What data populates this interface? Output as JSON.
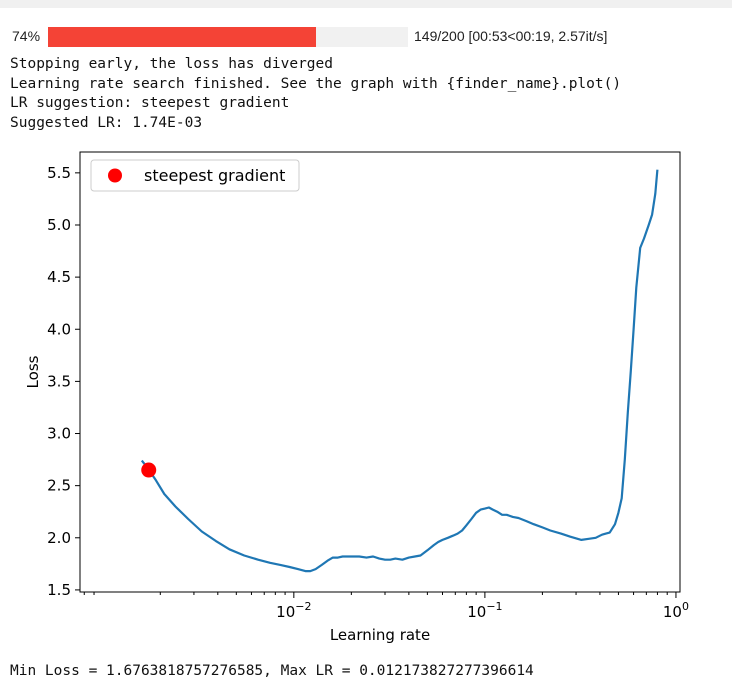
{
  "progress": {
    "percent_label": "74%",
    "fraction": 0.745,
    "fill_color": "#f44336",
    "track_color": "#f1f1f1",
    "status": "149/200 [00:53<00:19, 2.57it/s]"
  },
  "log_lines": [
    "Stopping early, the loss has diverged",
    "Learning rate search finished. See the graph with {finder_name}.plot()",
    "LR suggestion: steepest gradient",
    "Suggested LR: 1.74E-03"
  ],
  "footer": "Min Loss = 1.6763818757276585, Max LR = 0.012173827277396614",
  "chart_data": {
    "type": "line",
    "xlabel": "Learning rate",
    "ylabel": "Loss",
    "xscale": "log",
    "xlim": [
      0.00076,
      1.05
    ],
    "ylim": [
      1.48,
      5.7
    ],
    "x_ticks": [
      0.01,
      0.1,
      1
    ],
    "x_tick_labels": [
      {
        "base": "10",
        "exp": "−2"
      },
      {
        "base": "10",
        "exp": "−1"
      },
      {
        "base": "10",
        "exp": "0"
      }
    ],
    "y_ticks": [
      1.5,
      2.0,
      2.5,
      3.0,
      3.5,
      4.0,
      4.5,
      5.0,
      5.5
    ],
    "y_tick_labels": [
      "1.5",
      "2.0",
      "2.5",
      "3.0",
      "3.5",
      "4.0",
      "4.5",
      "5.0",
      "5.5"
    ],
    "line_color": "#1f77b4",
    "marker_color": "#ff0000",
    "grid": false,
    "legend": {
      "position": "top-left",
      "entries": [
        "steepest gradient"
      ]
    },
    "series": [
      {
        "x": [
          0.0016,
          0.0017,
          0.0019,
          0.0021,
          0.0024,
          0.0028,
          0.0033,
          0.0039,
          0.0046,
          0.0055,
          0.0065,
          0.0075,
          0.0085,
          0.0095,
          0.0105,
          0.0115,
          0.0122,
          0.013,
          0.014,
          0.015,
          0.016,
          0.017,
          0.018,
          0.019,
          0.02,
          0.022,
          0.024,
          0.026,
          0.028,
          0.03,
          0.032,
          0.034,
          0.037,
          0.04,
          0.043,
          0.046,
          0.05,
          0.054,
          0.057,
          0.06,
          0.064,
          0.068,
          0.072,
          0.076,
          0.08,
          0.085,
          0.09,
          0.095,
          0.1,
          0.105,
          0.11,
          0.116,
          0.123,
          0.13,
          0.14,
          0.15,
          0.165,
          0.18,
          0.2,
          0.22,
          0.25,
          0.28,
          0.32,
          0.35,
          0.38,
          0.41,
          0.43,
          0.45,
          0.48,
          0.5,
          0.52,
          0.54,
          0.56,
          0.58,
          0.6,
          0.62,
          0.65,
          0.68,
          0.72,
          0.75,
          0.78,
          0.8
        ],
        "y": [
          2.74,
          2.68,
          2.55,
          2.42,
          2.3,
          2.18,
          2.06,
          1.97,
          1.89,
          1.83,
          1.79,
          1.76,
          1.74,
          1.72,
          1.7,
          1.68,
          1.68,
          1.7,
          1.74,
          1.78,
          1.81,
          1.81,
          1.82,
          1.82,
          1.82,
          1.82,
          1.81,
          1.82,
          1.8,
          1.79,
          1.79,
          1.8,
          1.79,
          1.81,
          1.82,
          1.83,
          1.88,
          1.93,
          1.96,
          1.98,
          2.0,
          2.02,
          2.04,
          2.07,
          2.12,
          2.18,
          2.24,
          2.27,
          2.28,
          2.29,
          2.27,
          2.25,
          2.22,
          2.22,
          2.2,
          2.19,
          2.16,
          2.13,
          2.1,
          2.07,
          2.04,
          2.01,
          1.98,
          1.99,
          2.0,
          2.03,
          2.04,
          2.05,
          2.13,
          2.24,
          2.38,
          2.75,
          3.2,
          3.6,
          4.0,
          4.4,
          4.78,
          4.87,
          5.0,
          5.1,
          5.3,
          5.53
        ]
      }
    ],
    "suggestion_point": {
      "x": 0.00174,
      "y": 2.65
    }
  }
}
